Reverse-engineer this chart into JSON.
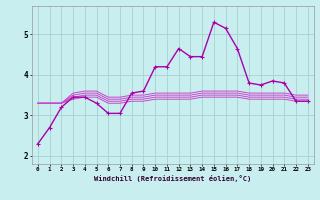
{
  "xlabel": "Windchill (Refroidissement éolien,°C)",
  "background_color": "#c8eef0",
  "grid_color": "#a0cccc",
  "line_color_main": "#aa00aa",
  "line_color_flat": "#cc44cc",
  "xlim": [
    -0.5,
    23.5
  ],
  "ylim": [
    1.8,
    5.7
  ],
  "xticks": [
    0,
    1,
    2,
    3,
    4,
    5,
    6,
    7,
    8,
    9,
    10,
    11,
    12,
    13,
    14,
    15,
    16,
    17,
    18,
    19,
    20,
    21,
    22,
    23
  ],
  "yticks": [
    2,
    3,
    4,
    5
  ],
  "series_main": [
    2.3,
    2.7,
    3.2,
    3.45,
    3.45,
    3.3,
    3.05,
    3.05,
    3.55,
    3.6,
    4.2,
    4.2,
    4.65,
    4.45,
    4.45,
    5.3,
    5.15,
    4.65,
    3.8,
    3.75,
    3.85,
    3.8,
    3.35,
    3.35
  ],
  "series_flat": [
    [
      3.3,
      3.3,
      3.3,
      3.4,
      3.45,
      3.45,
      3.3,
      3.3,
      3.35,
      3.35,
      3.4,
      3.4,
      3.4,
      3.4,
      3.45,
      3.45,
      3.45,
      3.45,
      3.4,
      3.4,
      3.4,
      3.4,
      3.35,
      3.35
    ],
    [
      3.3,
      3.3,
      3.3,
      3.45,
      3.5,
      3.5,
      3.35,
      3.35,
      3.4,
      3.4,
      3.45,
      3.45,
      3.45,
      3.45,
      3.5,
      3.5,
      3.5,
      3.5,
      3.45,
      3.45,
      3.45,
      3.45,
      3.4,
      3.4
    ],
    [
      3.3,
      3.3,
      3.3,
      3.5,
      3.55,
      3.55,
      3.4,
      3.4,
      3.45,
      3.45,
      3.5,
      3.5,
      3.5,
      3.5,
      3.55,
      3.55,
      3.55,
      3.55,
      3.5,
      3.5,
      3.5,
      3.5,
      3.45,
      3.45
    ],
    [
      3.3,
      3.3,
      3.3,
      3.55,
      3.6,
      3.6,
      3.45,
      3.45,
      3.5,
      3.5,
      3.55,
      3.55,
      3.55,
      3.55,
      3.6,
      3.6,
      3.6,
      3.6,
      3.55,
      3.55,
      3.55,
      3.55,
      3.5,
      3.5
    ]
  ],
  "figsize": [
    3.2,
    2.0
  ],
  "dpi": 100
}
